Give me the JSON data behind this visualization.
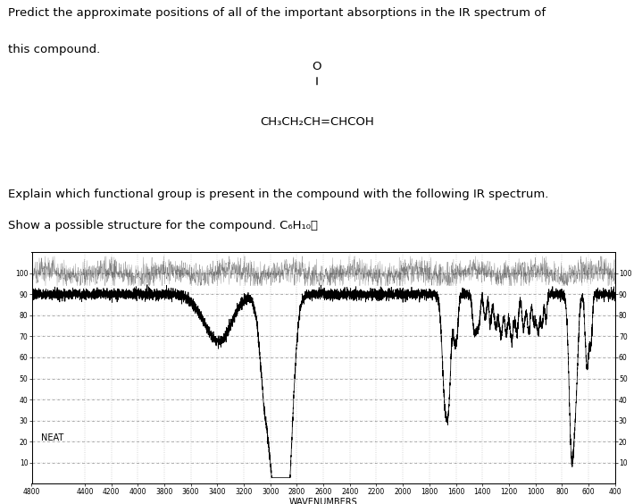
{
  "title_text1": "Predict the approximate positions of all of the important absorptions in the IR spectrum of",
  "title_text2": "this compound.",
  "formula_line": "CH₃CH₂CH=CHCOH",
  "oxygen_label": "O",
  "explain_text1": "Explain which functional group is present in the compound with the following IR spectrum.",
  "explain_text2": "Show a possible structure for the compound. C₆H₁₀⏐",
  "neat_label": "NEAT",
  "xlabel": "WAVENUMBERS",
  "yticks": [
    10,
    20,
    30,
    40,
    50,
    60,
    70,
    80,
    90,
    100
  ],
  "xticks": [
    4800,
    4400,
    4200,
    4000,
    3800,
    3600,
    3400,
    3200,
    3000,
    2800,
    2600,
    2400,
    2200,
    2000,
    1800,
    1600,
    1400,
    1200,
    1000,
    800,
    600,
    400
  ],
  "xlim_left": 4800,
  "xlim_right": 400,
  "ylim_bottom": 0,
  "ylim_top": 110,
  "bg_color": "#ffffff",
  "line_color": "#000000",
  "grid_color": "#aaaaaa",
  "font_size_title": 9.5,
  "font_size_formula": 9.5,
  "font_size_explain": 9.5,
  "font_size_neat": 7,
  "font_size_axis": 5.5,
  "font_size_xlabel": 7
}
